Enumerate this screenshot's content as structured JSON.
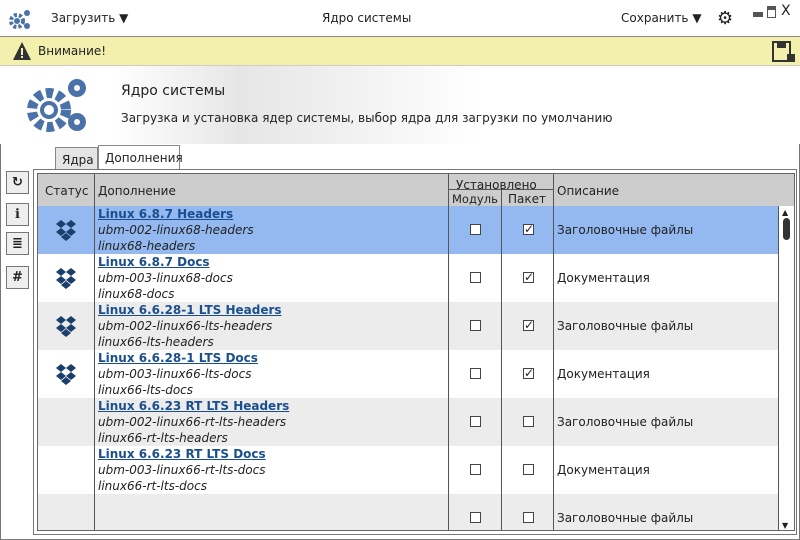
{
  "titlebar": {
    "load_label": "Загрузить",
    "title": "Ядро системы",
    "save_label": "Сохранить"
  },
  "warning": {
    "text": "Внимание!"
  },
  "banner": {
    "title": "Ядро системы",
    "subtitle": "Загрузка и установка ядер системы, выбор ядра для загрузки по умолчанию"
  },
  "tabs": [
    {
      "label": "Ядра",
      "active": false
    },
    {
      "label": "Дополнения",
      "active": true
    }
  ],
  "table": {
    "headers": {
      "status": "Статус",
      "addon": "Дополнение",
      "installed": "Установлено",
      "module": "Модуль",
      "package": "Пакет",
      "description": "Описание"
    },
    "rows": [
      {
        "name": "Linux 6.8.7 Headers",
        "id": "ubm-002-linux68-headers",
        "pkg": "linux68-headers",
        "status_icon": "dropbox-icon",
        "module": false,
        "package": true,
        "description": "Заголовочные файлы",
        "selected": true
      },
      {
        "name": "Linux 6.8.7 Docs",
        "id": "ubm-003-linux68-docs",
        "pkg": "linux68-docs",
        "status_icon": "dropbox-icon",
        "module": false,
        "package": true,
        "description": "Документация"
      },
      {
        "name": "Linux 6.6.28-1 LTS Headers",
        "id": "ubm-002-linux66-lts-headers",
        "pkg": "linux66-lts-headers",
        "status_icon": "dropbox-icon",
        "module": false,
        "package": true,
        "description": "Заголовочные файлы"
      },
      {
        "name": "Linux 6.6.28-1 LTS Docs",
        "id": "ubm-003-linux66-lts-docs",
        "pkg": "linux66-lts-docs",
        "status_icon": "dropbox-icon",
        "module": false,
        "package": true,
        "description": "Документация"
      },
      {
        "name": "Linux 6.6.23 RT LTS Headers",
        "id": "ubm-002-linux66-rt-lts-headers",
        "pkg": "linux66-rt-lts-headers",
        "status_icon": "",
        "module": false,
        "package": false,
        "description": "Заголовочные файлы"
      },
      {
        "name": "Linux 6.6.23 RT LTS Docs",
        "id": "ubm-003-linux66-rt-lts-docs",
        "pkg": "linux66-rt-lts-docs",
        "status_icon": "",
        "module": false,
        "package": false,
        "description": "Документация"
      },
      {
        "name": "",
        "id": "",
        "pkg": "",
        "status_icon": "",
        "module": false,
        "package": false,
        "description": "Заголовочные файлы"
      }
    ]
  },
  "colors": {
    "accent": "#4a72a8",
    "selected_row": "#93b9f0",
    "warning_bg": "#f3f0ad",
    "link": "#1a4f8f"
  }
}
